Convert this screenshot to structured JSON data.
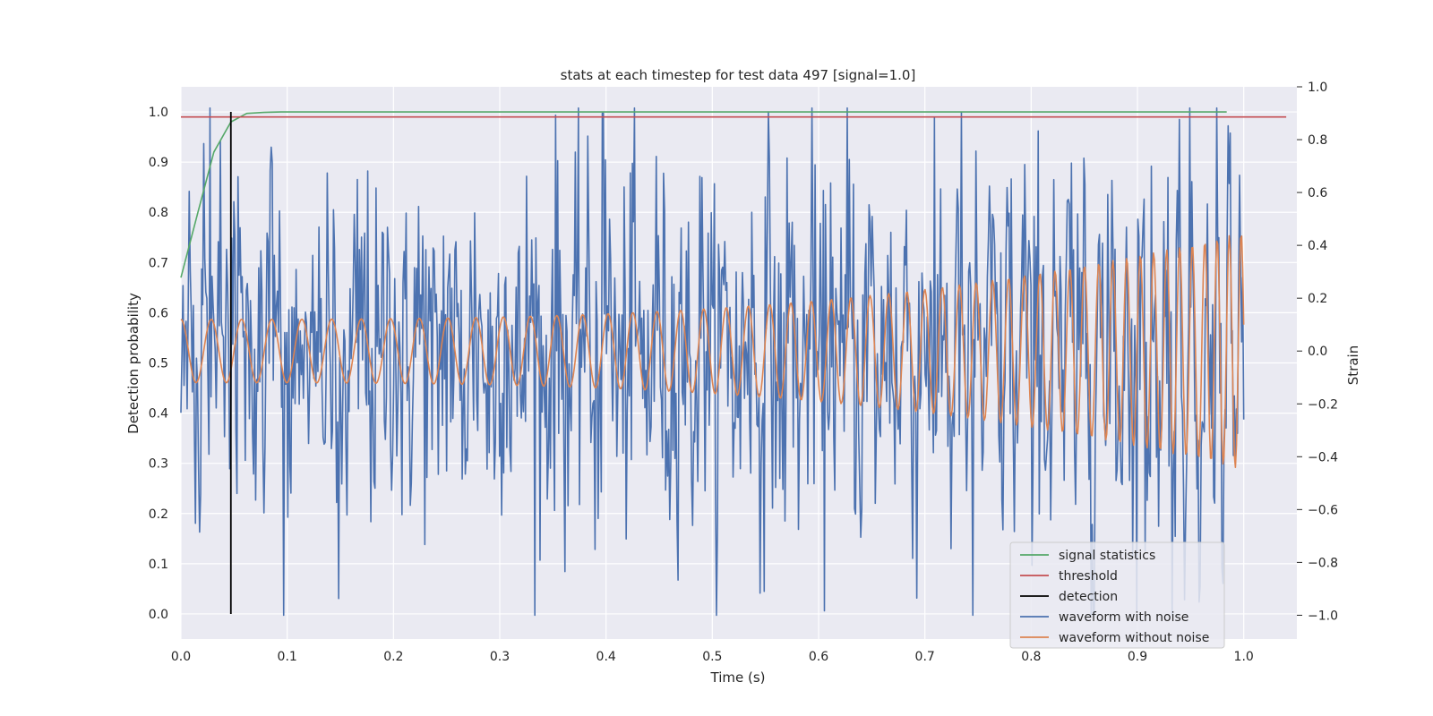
{
  "chart_data": {
    "type": "line",
    "title": "stats at each timestep for test data 497 [signal=1.0]",
    "xlabel": "Time (s)",
    "ylabel": "Detection probability",
    "y2label": "Strain",
    "xlim": [
      0.0,
      1.05
    ],
    "ylim": [
      -0.05,
      1.05
    ],
    "y2lim": [
      -1.09,
      1.0
    ],
    "xticks": [
      "0.0",
      "0.1",
      "0.2",
      "0.3",
      "0.4",
      "0.5",
      "0.6",
      "0.7",
      "0.8",
      "0.9",
      "1.0"
    ],
    "yticks": [
      "0.0",
      "0.1",
      "0.2",
      "0.3",
      "0.4",
      "0.5",
      "0.6",
      "0.7",
      "0.8",
      "0.9",
      "1.0"
    ],
    "y2ticks": [
      "1.0",
      "0.8",
      "0.6",
      "0.4",
      "0.2",
      "0.0",
      "−0.2",
      "−0.4",
      "−0.6",
      "−0.8",
      "−1.0"
    ],
    "grid": true,
    "legend_position": "lower-right",
    "colors": {
      "signal_statistics": "#55a868",
      "threshold": "#c44e52",
      "detection": "#000000",
      "waveform_with_noise": "#4c72b0",
      "waveform_without_noise": "#dd8452",
      "plot_background": "#eaeaf2",
      "grid": "#ffffff"
    },
    "series": [
      {
        "name": "signal statistics",
        "axis": "left",
        "x": [
          0.0,
          0.016,
          0.031,
          0.047,
          0.062,
          0.078,
          0.094,
          0.2,
          0.5,
          0.8,
          0.984
        ],
        "y": [
          0.67,
          0.8,
          0.92,
          0.98,
          0.997,
          0.999,
          1.0,
          1.0,
          1.0,
          1.0,
          1.0
        ]
      },
      {
        "name": "threshold",
        "axis": "left",
        "x": [
          0.0,
          1.04
        ],
        "y": [
          0.99,
          0.99
        ]
      },
      {
        "name": "detection",
        "axis": "left",
        "x": [
          0.047,
          0.047
        ],
        "y": [
          0.0,
          1.0
        ]
      },
      {
        "name": "waveform with noise",
        "axis": "right",
        "x_range": [
          0.0,
          1.0
        ],
        "strain_range": [
          -1.0,
          0.92
        ],
        "note_peaks": [
          [
            0.397,
            0.9
          ],
          [
            0.627,
            0.92
          ],
          [
            0.745,
            -1.0
          ],
          [
            0.958,
            -0.95
          ]
        ]
      },
      {
        "name": "waveform without noise",
        "axis": "right",
        "x_range": [
          0.0,
          1.0
        ],
        "amplitude_start": 0.12,
        "amplitude_end": 0.45,
        "frequency_start_hz": 35,
        "frequency_end_hz": 90
      }
    ],
    "legend": [
      "signal statistics",
      "threshold",
      "detection",
      "waveform with noise",
      "waveform without noise"
    ]
  }
}
